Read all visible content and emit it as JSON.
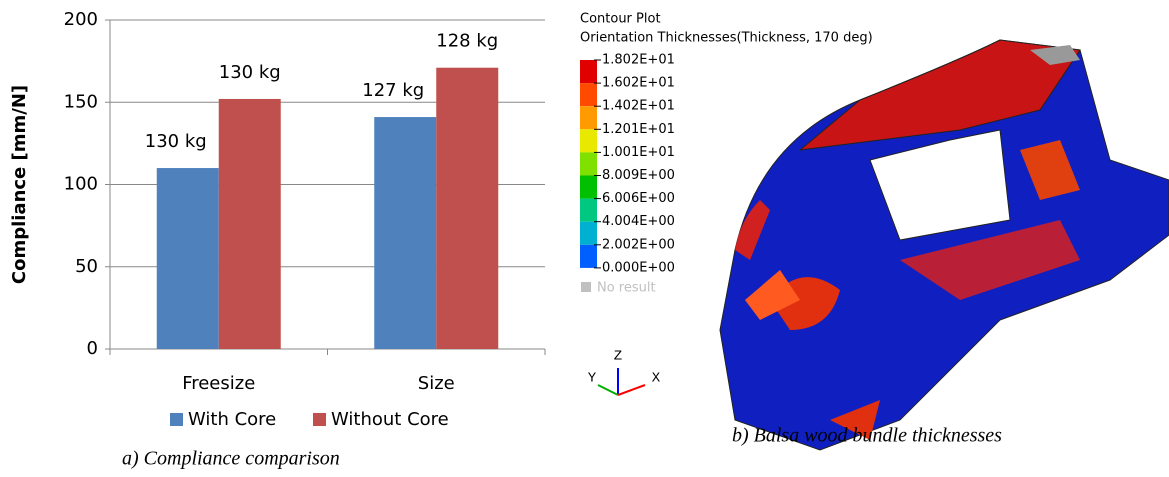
{
  "chart_data": {
    "type": "bar",
    "caption": "a)    Compliance comparison",
    "y_label": "Compliance [mm/N]",
    "categories": [
      "Freesize",
      "Size"
    ],
    "series": [
      {
        "name": "With Core",
        "color": "#4f81bd",
        "values": [
          110,
          141
        ],
        "annotations": [
          "130 kg",
          "127 kg"
        ]
      },
      {
        "name": "Without Core",
        "color": "#c0504d",
        "values": [
          152,
          171
        ],
        "annotations": [
          "130 kg",
          "128 kg"
        ]
      }
    ],
    "ylim": [
      0,
      200
    ],
    "yticks": [
      0,
      50,
      100,
      150,
      200
    ],
    "grid": true,
    "legend": "bottom"
  },
  "contour_plot": {
    "title": "Contour Plot",
    "subtitle": "Orientation Thicknesses(Thickness, 170 deg)",
    "levels": [
      {
        "label": "1.802E+01",
        "color": "#e00000"
      },
      {
        "label": "1.602E+01",
        "color": "#ff4a00"
      },
      {
        "label": "1.402E+01",
        "color": "#ff9a00"
      },
      {
        "label": "1.201E+01",
        "color": "#e8e800"
      },
      {
        "label": "1.001E+01",
        "color": "#80e000"
      },
      {
        "label": "8.009E+00",
        "color": "#00c000"
      },
      {
        "label": "6.006E+00",
        "color": "#00c880"
      },
      {
        "label": "4.004E+00",
        "color": "#00b0d0"
      },
      {
        "label": "2.002E+00",
        "color": "#0060ff"
      },
      {
        "label": "0.000E+00",
        "color": "#0000b0"
      }
    ],
    "no_result": "No result",
    "axes": {
      "z": "Z",
      "y": "Y",
      "x": "X"
    },
    "caption": "b)    Balsa wood bundle thicknesses"
  }
}
